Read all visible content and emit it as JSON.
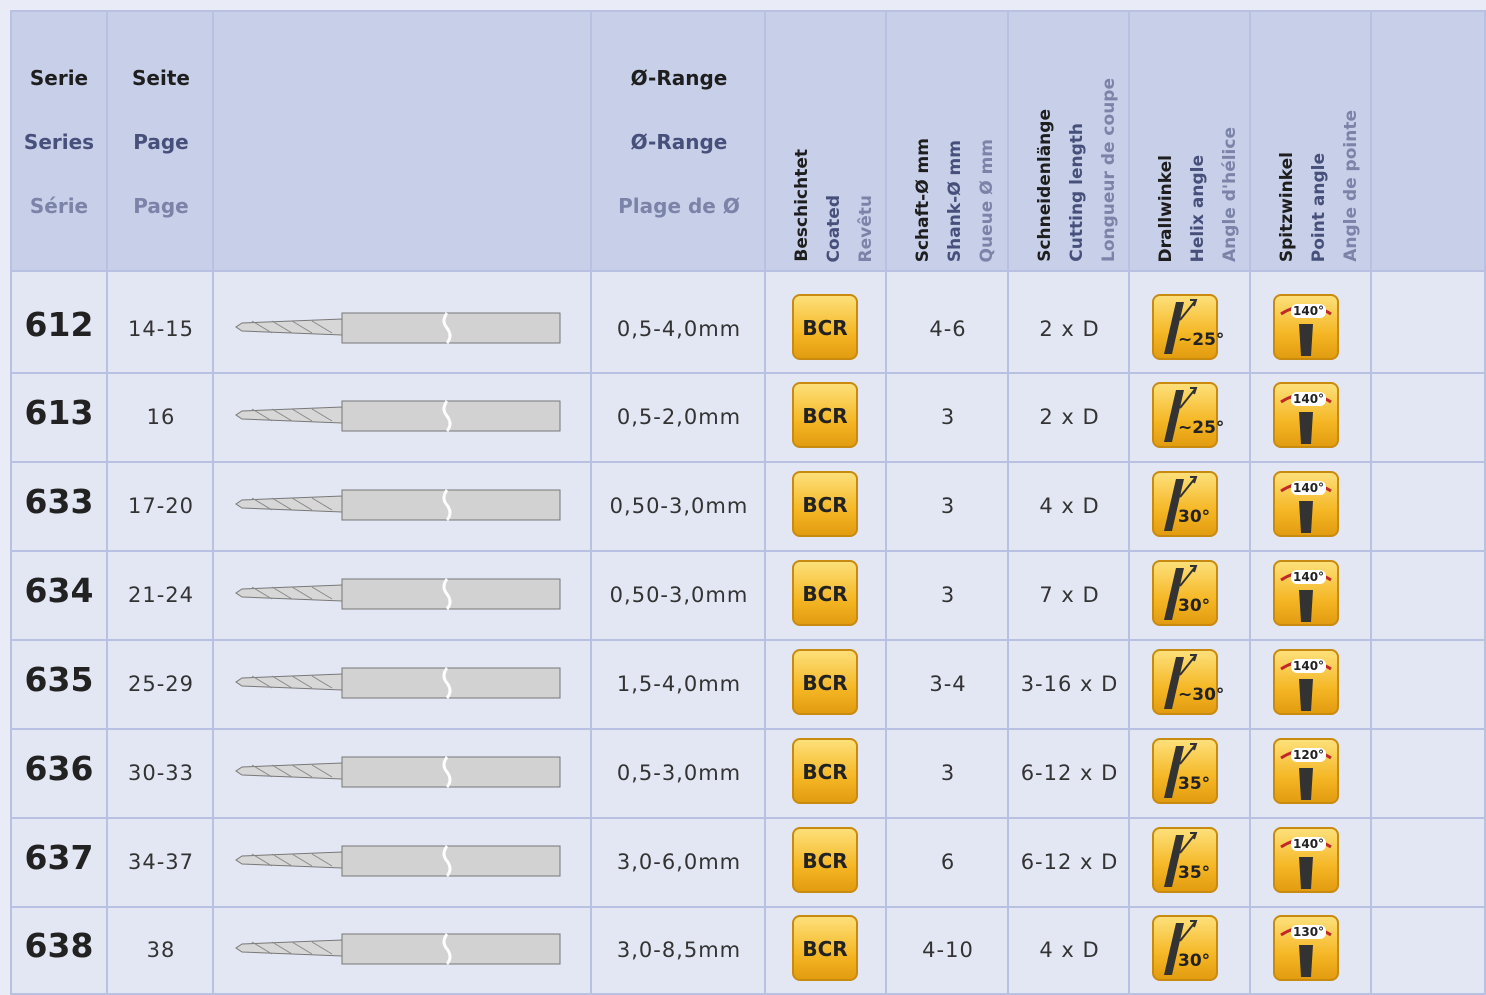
{
  "header": {
    "serie": [
      "Serie",
      "Series",
      "Série"
    ],
    "page": [
      "Seite",
      "Page",
      "Page"
    ],
    "range": [
      "Ø-Range",
      "Ø-Range",
      "Plage de Ø"
    ],
    "coated": [
      "Beschichtet",
      "Coated",
      "Revêtu"
    ],
    "shank": [
      "Schaft-Ø mm",
      "Shank-Ø mm",
      "Queue Ø mm"
    ],
    "cutting": [
      "Schneidenlänge",
      "Cutting length",
      "Longueur de coupe"
    ],
    "helix": [
      "Drallwinkel",
      "Helix angle",
      "Angle d'hélice"
    ],
    "point": [
      "Spitzwinkel",
      "Point angle",
      "Angle de pointe"
    ]
  },
  "rows": [
    {
      "serie": "612",
      "page": "14-15",
      "range": "0,5-4,0mm",
      "coating": "BCR",
      "shank": "4-6",
      "cutting": "2 x D",
      "helix": "~25°",
      "point": "140°"
    },
    {
      "serie": "613",
      "page": "16",
      "range": "0,5-2,0mm",
      "coating": "BCR",
      "shank": "3",
      "cutting": "2 x D",
      "helix": "~25°",
      "point": "140°"
    },
    {
      "serie": "633",
      "page": "17-20",
      "range": "0,50-3,0mm",
      "coating": "BCR",
      "shank": "3",
      "cutting": "4 x D",
      "helix": "30°",
      "point": "140°"
    },
    {
      "serie": "634",
      "page": "21-24",
      "range": "0,50-3,0mm",
      "coating": "BCR",
      "shank": "3",
      "cutting": "7 x D",
      "helix": "30°",
      "point": "140°"
    },
    {
      "serie": "635",
      "page": "25-29",
      "range": "1,5-4,0mm",
      "coating": "BCR",
      "shank": "3-4",
      "cutting": "3-16 x D",
      "helix": "~30°",
      "point": "140°"
    },
    {
      "serie": "636",
      "page": "30-33",
      "range": "0,5-3,0mm",
      "coating": "BCR",
      "shank": "3",
      "cutting": "6-12 x D",
      "helix": "35°",
      "point": "120°"
    },
    {
      "serie": "637",
      "page": "34-37",
      "range": "3,0-6,0mm",
      "coating": "BCR",
      "shank": "6",
      "cutting": "6-12 x D",
      "helix": "35°",
      "point": "140°"
    },
    {
      "serie": "638",
      "page": "38",
      "range": "3,0-8,5mm",
      "coating": "BCR",
      "shank": "4-10",
      "cutting": "4 x D",
      "helix": "30°",
      "point": "130°"
    }
  ]
}
